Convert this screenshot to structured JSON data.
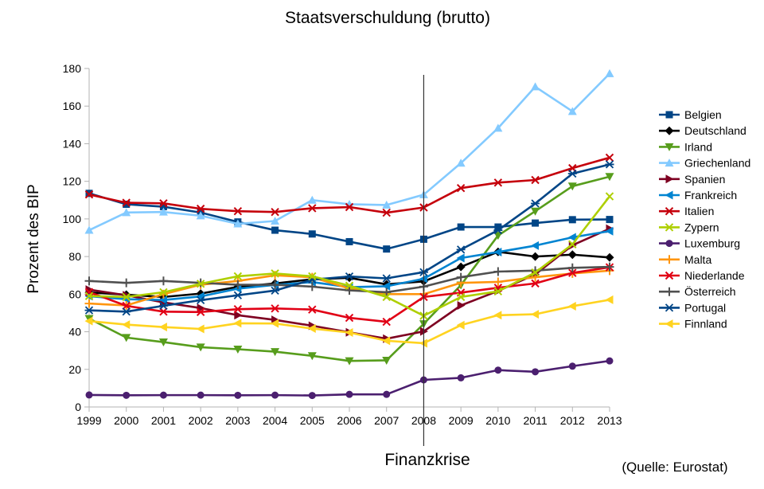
{
  "chart_data": {
    "type": "line",
    "title": "Staatsverschuldung (brutto)",
    "ylabel": "Prozent des BIP",
    "xlabel": "",
    "x": [
      1999,
      2000,
      2001,
      2002,
      2003,
      2004,
      2005,
      2006,
      2007,
      2008,
      2009,
      2010,
      2011,
      2012,
      2013
    ],
    "ylim": [
      0,
      180
    ],
    "yticks": [
      0,
      20,
      40,
      60,
      80,
      100,
      120,
      140,
      160,
      180
    ],
    "grid": false,
    "legend_position": "right",
    "annotation": {
      "label": "Finanzkrise",
      "x": 2008
    },
    "source": "(Quelle: Eurostat)",
    "series": [
      {
        "name": "Belgien",
        "color": "#004586",
        "marker": "square",
        "values": [
          113.6,
          107.8,
          106.5,
          103.4,
          98.4,
          94.0,
          92.0,
          87.9,
          84.0,
          89.2,
          95.7,
          95.7,
          97.8,
          99.6,
          99.7
        ]
      },
      {
        "name": "Deutschland",
        "color": "#000000",
        "marker": "diamond",
        "values": [
          60.9,
          59.7,
          58.5,
          60.3,
          63.9,
          65.7,
          67.9,
          68.7,
          65.2,
          66.8,
          74.5,
          82.5,
          80.0,
          81.0,
          79.5
        ]
      },
      {
        "name": "Irland",
        "color": "#579d1c",
        "marker": "triangle-down",
        "values": [
          47.0,
          36.9,
          34.5,
          31.8,
          30.7,
          29.4,
          27.2,
          24.5,
          24.8,
          44.2,
          64.8,
          91.2,
          104.1,
          117.4,
          122.5
        ]
      },
      {
        "name": "Griechenland",
        "color": "#83caff",
        "marker": "triangle-up",
        "values": [
          94.0,
          103.4,
          103.7,
          101.7,
          97.4,
          98.9,
          110.0,
          107.8,
          107.4,
          112.9,
          129.7,
          148.3,
          170.3,
          157.2,
          177.3
        ]
      },
      {
        "name": "Spanien",
        "color": "#7e0021",
        "marker": "triangle-right",
        "values": [
          62.4,
          59.4,
          55.6,
          52.6,
          48.8,
          46.3,
          43.2,
          39.7,
          36.3,
          40.2,
          54.0,
          61.7,
          70.5,
          86.0,
          94.8
        ]
      },
      {
        "name": "Frankreich",
        "color": "#0084d1",
        "marker": "triangle-left",
        "values": [
          58.9,
          57.3,
          56.9,
          58.8,
          62.9,
          64.9,
          66.4,
          63.7,
          64.2,
          68.2,
          79.2,
          82.4,
          85.8,
          90.2,
          93.5
        ]
      },
      {
        "name": "Italien",
        "color": "#c5000b",
        "marker": "x",
        "values": [
          113.0,
          108.6,
          108.3,
          105.4,
          104.1,
          103.7,
          105.7,
          106.3,
          103.3,
          106.1,
          116.4,
          119.3,
          120.7,
          127.0,
          132.6
        ]
      },
      {
        "name": "Luxemburg",
        "color": "#4b1f6f",
        "marker": "circle",
        "values": [
          6.4,
          6.2,
          6.3,
          6.3,
          6.2,
          6.3,
          6.1,
          6.7,
          6.7,
          14.4,
          15.5,
          19.6,
          18.7,
          21.7,
          24.5
        ]
      },
      {
        "name": "Malta",
        "color": "#ff950e",
        "marker": "plus",
        "values": [
          55.0,
          54.0,
          60.0,
          65.0,
          67.0,
          70.0,
          69.0,
          63.0,
          60.0,
          60.0,
          66.0,
          66.5,
          69.0,
          71.0,
          72.5
        ]
      },
      {
        "name": "Niederlande",
        "color": "#e10015",
        "marker": "x",
        "values": [
          61.1,
          53.8,
          50.7,
          50.5,
          52.0,
          52.4,
          51.8,
          47.4,
          45.3,
          58.5,
          60.8,
          63.4,
          65.7,
          71.3,
          74.3
        ]
      },
      {
        "name": "Österreich",
        "color": "#505050",
        "marker": "plus",
        "values": [
          67.0,
          66.0,
          67.0,
          66.0,
          65.0,
          65.0,
          64.0,
          62.0,
          61.0,
          64.0,
          69.0,
          72.0,
          72.5,
          74.0,
          74.5
        ]
      },
      {
        "name": "Portugal",
        "color": "#004586",
        "marker": "star",
        "values": [
          51.4,
          50.7,
          53.8,
          56.8,
          59.4,
          61.9,
          67.7,
          69.4,
          68.4,
          71.7,
          83.7,
          94.0,
          108.2,
          124.1,
          129.0
        ]
      },
      {
        "name": "Zypern",
        "color": "#aecf00",
        "marker": "x",
        "values": [
          59.0,
          58.5,
          61.0,
          65.5,
          69.5,
          71.0,
          69.5,
          64.5,
          58.5,
          48.5,
          58.5,
          61.5,
          71.5,
          86.5,
          112.0
        ]
      },
      {
        "name": "Finnland",
        "color": "#ffd320",
        "marker": "triangle-left",
        "values": [
          45.7,
          43.8,
          42.5,
          41.5,
          44.5,
          44.4,
          41.7,
          39.6,
          35.2,
          33.9,
          43.5,
          48.8,
          49.3,
          53.6,
          57.0
        ]
      }
    ]
  }
}
